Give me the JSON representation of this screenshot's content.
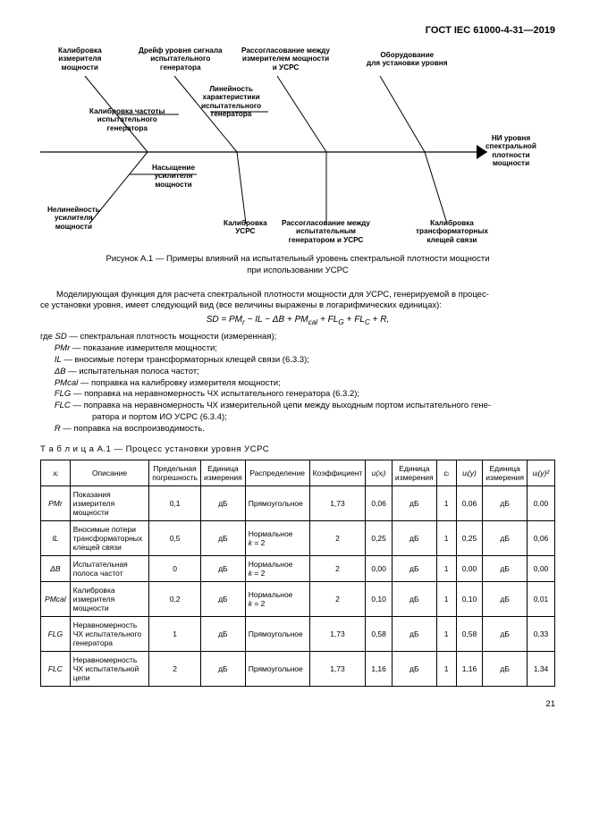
{
  "header": "ГОСТ IEC 61000-4-31—2019",
  "diagram": {
    "top1": "Калибровка\nизмерителя\nмощности",
    "top2": "Дрейф уровня сигнала\nиспытательного\nгенератора",
    "top3": "Рассогласование между\nизмерителем мощности\nи УСРС",
    "top4": "Оборудование\nдля установки уровня",
    "mid_top1": "Калибровка частоты\nиспытательного\nгенератора",
    "mid_top2": "Линейность\nхарактеристики\nиспытательного\nгенератора",
    "bot1": "Нелинейность\nусилителя\nмощности",
    "bot2": "Насыщение\nусилителя\nмощности",
    "bot3": "Калибровка\nУСРС",
    "bot4": "Рассогласование между\nиспытательным\nгенератором и УСРС",
    "bot5": "Калибровка\nтрансформаторных\nклещей связи",
    "result": "НИ уровня\nспектральной\nплотности\nмощности"
  },
  "fig_caption": "Рисунок А.1 — Примеры влияний на испытательный уровень спектральной плотности мощности\nпри использовании УСРС",
  "para1": "Моделирующая функция для расчета спектральной плотности мощности для УСРС, генерируемой в процес-\nсе установки уровня, имеет следующий вид (все величины выражены в логарифмических единицах):",
  "formula_plain": "SD = PMr − IL − ΔB + PMcal + FLG + FLC + R,",
  "where_intro": "где",
  "where": [
    {
      "sym": "SD",
      "txt": " — спектральная плотность мощности (измеренная);"
    },
    {
      "sym": "PMr",
      "txt": " — показание измерителя мощности;"
    },
    {
      "sym": "IL",
      "txt": " — вносимые потери трансформаторных клещей связи (6.3.3);"
    },
    {
      "sym": "ΔB",
      "txt": " — испытательная полоса частот;"
    },
    {
      "sym": "PMcal",
      "txt": " — поправка на калибровку измерителя мощности;"
    },
    {
      "sym": "FLG",
      "txt": " — поправка на неравномерность ЧХ испытательного генератора (6.3.2);"
    },
    {
      "sym": "FLC",
      "txt": " — поправка на неравномерность ЧХ измерительной цепи между выходным портом испытательного гене-"
    },
    {
      "sym": "",
      "txt": "ратора и портом ИО УСРС (6.3.4);"
    },
    {
      "sym": "R",
      "txt": " — поправка на воспроизводимость."
    }
  ],
  "table_title": "Т а б л и ц а  А.1 — Процесс установки уровня УСРС",
  "th": {
    "c1": "xᵢ",
    "c2": "Описание",
    "c3": "Предельная погрешность",
    "c4": "Единица измерения",
    "c5": "Распределение",
    "c6": "Коэффициент",
    "c7": "u(xᵢ)",
    "c8": "Единица измерения",
    "c9": "cᵢ",
    "c10": "uᵢ(y)",
    "c11": "Единица измерения",
    "c12": "uᵢ(y)²"
  },
  "rows": [
    {
      "sym": "PMr",
      "desc": "Показания измерителя мощности",
      "lim": "0,1",
      "u1": "дБ",
      "dist": "Прямоугольное",
      "coef": "1,73",
      "ux": "0,06",
      "u2": "дБ",
      "c": "1",
      "uy": "0,06",
      "u3": "дБ",
      "uy2": "0,00"
    },
    {
      "sym": "IL",
      "desc": "Вносимые потери трансформаторных клещей связи",
      "lim": "0,5",
      "u1": "дБ",
      "dist": "Нормальное k = 2",
      "coef": "2",
      "ux": "0,25",
      "u2": "дБ",
      "c": "1",
      "uy": "0,25",
      "u3": "дБ",
      "uy2": "0,06"
    },
    {
      "sym": "ΔB",
      "desc": "Испытательная полоса частот",
      "lim": "0",
      "u1": "дБ",
      "dist": "Нормальное k = 2",
      "coef": "2",
      "ux": "0,00",
      "u2": "дБ",
      "c": "1",
      "uy": "0,00",
      "u3": "дБ",
      "uy2": "0,00"
    },
    {
      "sym": "PMcal",
      "desc": "Калибровка измерителя мощности",
      "lim": "0,2",
      "u1": "дБ",
      "dist": "Нормальное k = 2",
      "coef": "2",
      "ux": "0,10",
      "u2": "дБ",
      "c": "1",
      "uy": "0,10",
      "u3": "дБ",
      "uy2": "0,01"
    },
    {
      "sym": "FLG",
      "desc": "Неравномерность ЧХ испытательного генератора",
      "lim": "1",
      "u1": "дБ",
      "dist": "Прямоугольное",
      "coef": "1,73",
      "ux": "0,58",
      "u2": "дБ",
      "c": "1",
      "uy": "0,58",
      "u3": "дБ",
      "uy2": "0,33"
    },
    {
      "sym": "FLC",
      "desc": "Неравномерность ЧХ испытательной цепи",
      "lim": "2",
      "u1": "дБ",
      "dist": "Прямоугольное",
      "coef": "1,73",
      "ux": "1,16",
      "u2": "дБ",
      "c": "1",
      "uy": "1,16",
      "u3": "дБ",
      "uy2": "1,34"
    }
  ],
  "pagenum": "21"
}
